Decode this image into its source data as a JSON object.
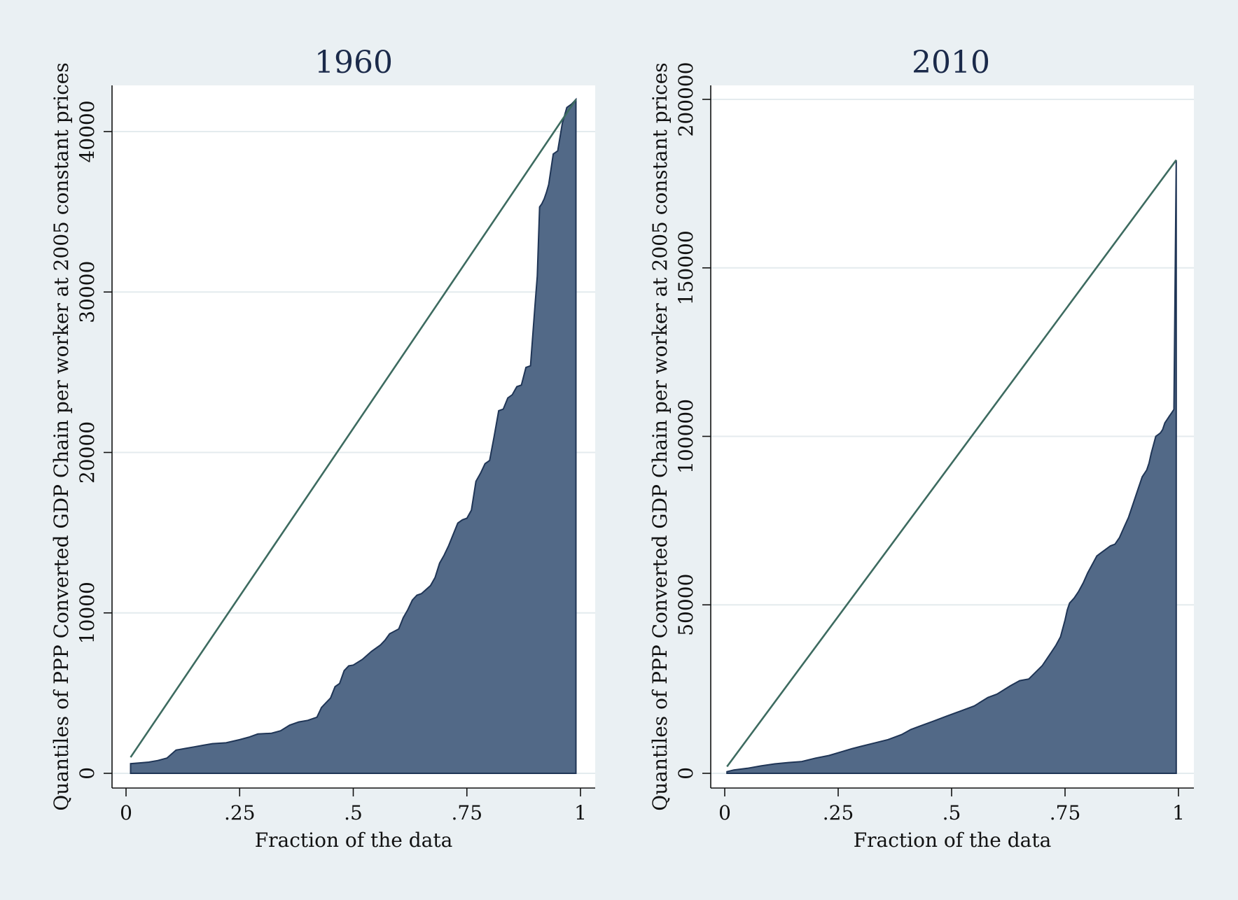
{
  "chart_data": [
    {
      "type": "area",
      "title": "1960",
      "xlabel": "Fraction of the data",
      "ylabel": "Quantiles of PPP Converted GDP Chain per worker at 2005 constant prices",
      "xlim": [
        0,
        1
      ],
      "ylim": [
        0,
        42000
      ],
      "xticks": [
        0,
        0.25,
        0.5,
        0.75,
        1
      ],
      "xtick_labels": [
        "0",
        ".25",
        ".5",
        ".75",
        "1"
      ],
      "yticks": [
        0,
        10000,
        20000,
        30000,
        40000
      ],
      "ytick_labels": [
        "0",
        "10000",
        "20000",
        "30000",
        "40000"
      ],
      "grid": true,
      "reference_line": {
        "x": [
          0.01,
          0.99
        ],
        "y": [
          1000,
          42000
        ]
      },
      "quantiles": {
        "x": [
          0.01,
          0.03,
          0.05,
          0.07,
          0.09,
          0.1,
          0.11,
          0.13,
          0.15,
          0.17,
          0.19,
          0.22,
          0.25,
          0.27,
          0.29,
          0.32,
          0.34,
          0.36,
          0.38,
          0.4,
          0.42,
          0.43,
          0.44,
          0.45,
          0.46,
          0.47,
          0.48,
          0.49,
          0.5,
          0.52,
          0.54,
          0.56,
          0.57,
          0.58,
          0.6,
          0.61,
          0.62,
          0.63,
          0.64,
          0.65,
          0.67,
          0.68,
          0.69,
          0.7,
          0.71,
          0.72,
          0.73,
          0.74,
          0.75,
          0.76,
          0.77,
          0.78,
          0.79,
          0.8,
          0.81,
          0.82,
          0.83,
          0.84,
          0.85,
          0.86,
          0.87,
          0.88,
          0.89,
          0.9,
          0.905,
          0.91,
          0.915,
          0.92,
          0.925,
          0.93,
          0.94,
          0.95,
          0.96,
          0.97,
          0.98,
          0.99
        ],
        "y": [
          600,
          650,
          700,
          800,
          950,
          1200,
          1450,
          1550,
          1650,
          1750,
          1850,
          1900,
          2100,
          2250,
          2450,
          2500,
          2650,
          3000,
          3200,
          3300,
          3500,
          4100,
          4400,
          4700,
          5400,
          5600,
          6400,
          6700,
          6750,
          7100,
          7600,
          8000,
          8300,
          8700,
          9000,
          9700,
          10200,
          10800,
          11100,
          11200,
          11700,
          12200,
          13100,
          13600,
          14200,
          14900,
          15600,
          15800,
          15900,
          16400,
          18200,
          18700,
          19300,
          19500,
          21000,
          22600,
          22700,
          23400,
          23600,
          24100,
          24200,
          25300,
          25400,
          29200,
          31000,
          35300,
          35500,
          35800,
          36200,
          36700,
          38600,
          38800,
          40500,
          41500,
          41700,
          42000
        ]
      }
    },
    {
      "type": "area",
      "title": "2010",
      "xlabel": "Fraction of the data",
      "ylabel": "Quantiles of PPP Converted GDP Chain per worker at 2005 constant prices",
      "xlim": [
        0,
        1
      ],
      "ylim": [
        0,
        200000
      ],
      "xticks": [
        0,
        0.25,
        0.5,
        0.75,
        1
      ],
      "xtick_labels": [
        "0",
        ".25",
        ".5",
        ".75",
        "1"
      ],
      "yticks": [
        0,
        50000,
        100000,
        150000,
        200000
      ],
      "ytick_labels": [
        "0",
        "50000",
        "100000",
        "150000",
        "200000"
      ],
      "grid": true,
      "reference_line": {
        "x": [
          0.005,
          0.995
        ],
        "y": [
          2000,
          182000
        ]
      },
      "quantiles": {
        "x": [
          0.005,
          0.02,
          0.05,
          0.08,
          0.11,
          0.14,
          0.17,
          0.2,
          0.23,
          0.26,
          0.28,
          0.3,
          0.33,
          0.36,
          0.39,
          0.41,
          0.43,
          0.46,
          0.49,
          0.52,
          0.55,
          0.58,
          0.6,
          0.63,
          0.65,
          0.67,
          0.7,
          0.71,
          0.72,
          0.73,
          0.74,
          0.75,
          0.755,
          0.76,
          0.77,
          0.78,
          0.79,
          0.8,
          0.81,
          0.82,
          0.83,
          0.84,
          0.85,
          0.86,
          0.87,
          0.88,
          0.89,
          0.9,
          0.91,
          0.92,
          0.93,
          0.935,
          0.94,
          0.95,
          0.96,
          0.965,
          0.97,
          0.975,
          0.98,
          0.985,
          0.99,
          0.995
        ],
        "y": [
          500,
          1000,
          1500,
          2200,
          2800,
          3200,
          3500,
          4500,
          5300,
          6500,
          7300,
          8000,
          9000,
          10000,
          11500,
          13000,
          14000,
          15500,
          17000,
          18500,
          20000,
          22500,
          23500,
          26000,
          27500,
          28000,
          32000,
          34000,
          36000,
          38000,
          40500,
          45500,
          48500,
          50500,
          52000,
          54000,
          56500,
          59500,
          62000,
          64500,
          65500,
          66500,
          67500,
          68000,
          70000,
          73000,
          76000,
          80000,
          84000,
          88000,
          90000,
          92000,
          95000,
          100000,
          101000,
          102000,
          104000,
          105000,
          106000,
          107000,
          108000,
          182000
        ]
      }
    }
  ]
}
